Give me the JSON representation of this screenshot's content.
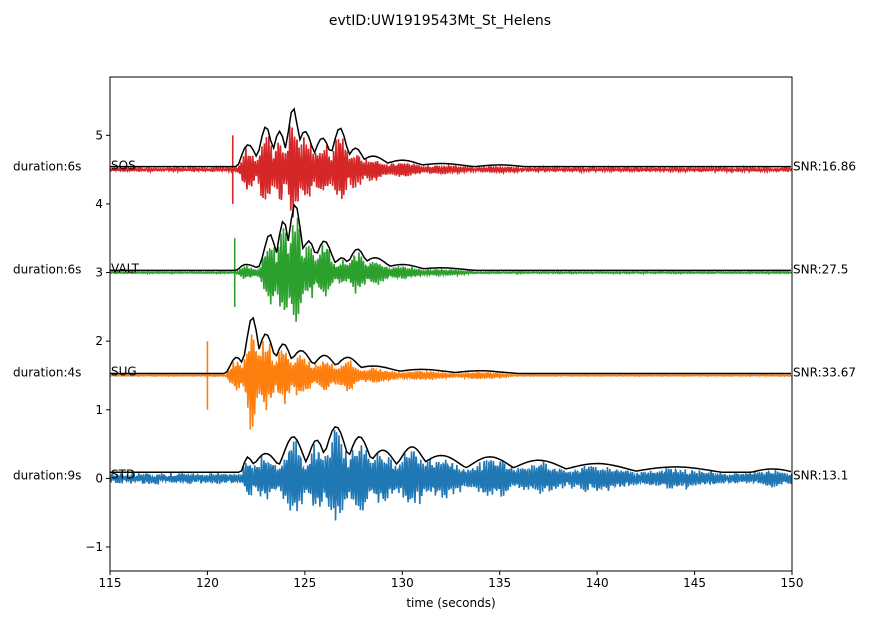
{
  "chart_data": {
    "type": "line",
    "title": "evtID:UW1919543Mt_St_Helens",
    "xlabel": "time (seconds)",
    "ylabel": "",
    "xlim": [
      115,
      150
    ],
    "ylim": [
      -1.35,
      5.85
    ],
    "xticks": [
      115,
      120,
      125,
      130,
      135,
      140,
      145,
      150
    ],
    "xtick_labels": [
      "115",
      "120",
      "125",
      "130",
      "135",
      "140",
      "145",
      "150"
    ],
    "yticks": [
      -1,
      0,
      1,
      2,
      3,
      4,
      5
    ],
    "ytick_labels": [
      "−1",
      "0",
      "1",
      "2",
      "3",
      "4",
      "5"
    ],
    "grid": false,
    "legend": "none",
    "series": [
      {
        "station": "SOS",
        "color": "#d62728",
        "offset": 4.5,
        "duration_label": "duration:6s",
        "snr_label": "SNR:16.86",
        "onset": 121.4,
        "onset_spike": {
          "x": 121.3,
          "low": 4.0,
          "high": 5.0
        },
        "noise_level": 0.025,
        "envelope_peaks": [
          {
            "t": 122.1,
            "a": 0.35
          },
          {
            "t": 123.0,
            "a": 0.62
          },
          {
            "t": 123.7,
            "a": 0.55
          },
          {
            "t": 124.4,
            "a": 0.9
          },
          {
            "t": 125.0,
            "a": 0.55
          },
          {
            "t": 125.9,
            "a": 0.45
          },
          {
            "t": 126.8,
            "a": 0.6
          },
          {
            "t": 127.6,
            "a": 0.3
          },
          {
            "t": 128.5,
            "a": 0.18
          },
          {
            "t": 130.0,
            "a": 0.12
          },
          {
            "t": 132.0,
            "a": 0.07
          },
          {
            "t": 135.0,
            "a": 0.05
          }
        ]
      },
      {
        "station": "VALT",
        "color": "#2ca02c",
        "offset": 3.0,
        "duration_label": "duration:6s",
        "snr_label": "SNR:27.5",
        "onset": 121.4,
        "onset_spike": {
          "x": 121.4,
          "low": 2.5,
          "high": 3.5
        },
        "noise_level": 0.012,
        "envelope_peaks": [
          {
            "t": 122.0,
            "a": 0.1
          },
          {
            "t": 123.2,
            "a": 0.55
          },
          {
            "t": 123.9,
            "a": 0.75
          },
          {
            "t": 124.5,
            "a": 1.0
          },
          {
            "t": 125.2,
            "a": 0.45
          },
          {
            "t": 126.0,
            "a": 0.45
          },
          {
            "t": 126.9,
            "a": 0.2
          },
          {
            "t": 127.7,
            "a": 0.33
          },
          {
            "t": 128.6,
            "a": 0.2
          },
          {
            "t": 130.0,
            "a": 0.1
          },
          {
            "t": 132.0,
            "a": 0.05
          }
        ]
      },
      {
        "station": "SUG",
        "color": "#ff7f0e",
        "offset": 1.5,
        "duration_label": "duration:4s",
        "snr_label": "SNR:33.67",
        "onset": 120.8,
        "onset_spike": {
          "x": 120.0,
          "low": 1.0,
          "high": 2.0
        },
        "noise_level": 0.008,
        "envelope_peaks": [
          {
            "t": 121.5,
            "a": 0.25
          },
          {
            "t": 122.3,
            "a": 0.85
          },
          {
            "t": 123.0,
            "a": 0.6
          },
          {
            "t": 123.9,
            "a": 0.45
          },
          {
            "t": 124.8,
            "a": 0.35
          },
          {
            "t": 126.0,
            "a": 0.28
          },
          {
            "t": 127.2,
            "a": 0.25
          },
          {
            "t": 128.5,
            "a": 0.12
          },
          {
            "t": 131.0,
            "a": 0.07
          },
          {
            "t": 134.0,
            "a": 0.05
          }
        ]
      },
      {
        "station": "STD",
        "color": "#1f77b4",
        "offset": 0.0,
        "duration_label": "duration:9s",
        "snr_label": "SNR:13.1",
        "onset": 121.6,
        "onset_spike": null,
        "noise_level": 0.07,
        "envelope_peaks": [
          {
            "t": 122.0,
            "a": 0.3
          },
          {
            "t": 123.0,
            "a": 0.35
          },
          {
            "t": 124.4,
            "a": 0.6
          },
          {
            "t": 125.6,
            "a": 0.55
          },
          {
            "t": 126.6,
            "a": 0.75
          },
          {
            "t": 127.8,
            "a": 0.6
          },
          {
            "t": 129.0,
            "a": 0.4
          },
          {
            "t": 130.5,
            "a": 0.45
          },
          {
            "t": 132.0,
            "a": 0.32
          },
          {
            "t": 134.5,
            "a": 0.3
          },
          {
            "t": 137.0,
            "a": 0.25
          },
          {
            "t": 140.0,
            "a": 0.2
          },
          {
            "t": 144.0,
            "a": 0.15
          },
          {
            "t": 149.0,
            "a": 0.12
          }
        ]
      }
    ]
  }
}
